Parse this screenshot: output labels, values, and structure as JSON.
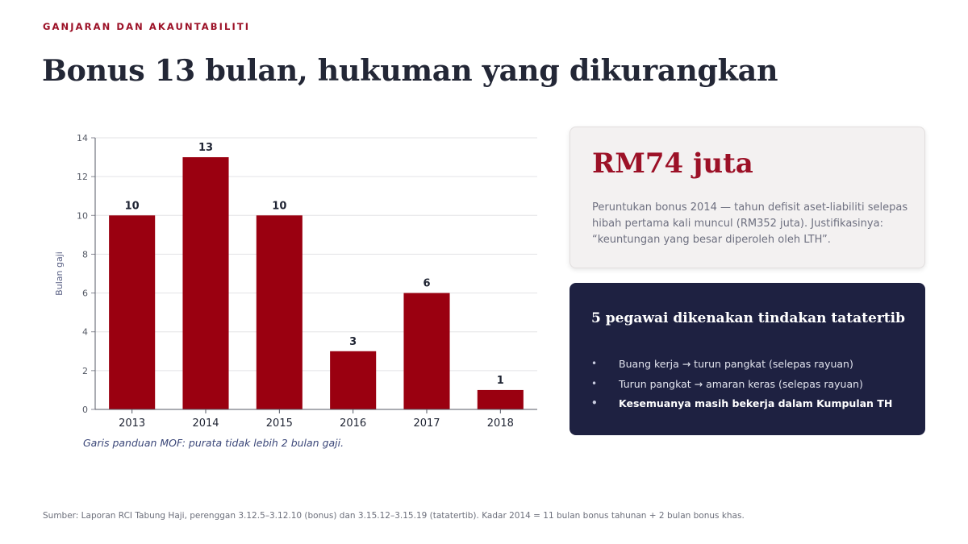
{
  "header": {
    "eyebrow": "GANJARAN DAN AKAUNTABILITI",
    "title": "Bonus 13 bulan, hukuman yang dikurangkan"
  },
  "chart_note": "Garis panduan MOF: purata tidak lebih 2 bulan gaji.",
  "stat_card": {
    "value": "RM74 juta",
    "description": "Peruntukan bonus 2014 — tahun defisit aset-liabiliti selepas hibah pertama kali muncul (RM352 juta). Justifikasinya: “keuntungan yang besar diperoleh oleh LTH”."
  },
  "discipline_card": {
    "title": "5 pegawai dikenakan tindakan tatatertib",
    "items": [
      {
        "text": "Buang kerja  →  turun pangkat (selepas rayuan)",
        "bold": false
      },
      {
        "text": "Turun pangkat  →  amaran keras (selepas rayuan)",
        "bold": false
      },
      {
        "text": "Kesemuanya masih bekerja dalam Kumpulan TH",
        "bold": true
      }
    ]
  },
  "source": "Sumber: Laporan RCI Tabung Haji, perenggan 3.12.5–3.12.10 (bonus) dan 3.15.12–3.15.19 (tatatertib). Kadar 2014 = 11 bulan bonus tahunan + 2 bulan bonus khas.",
  "colors": {
    "accent": "#9c1127",
    "bar": "#9a0010",
    "dark_card": "#1e2141",
    "gridline": "#e3e3e6"
  },
  "chart_data": {
    "type": "bar",
    "categories": [
      "2013",
      "2014",
      "2015",
      "2016",
      "2017",
      "2018"
    ],
    "values": [
      10,
      13,
      10,
      3,
      6,
      1
    ],
    "title": "",
    "xlabel": "",
    "ylabel": "Bulan gaji",
    "ylim": [
      0,
      14
    ],
    "yticks": [
      0,
      2,
      4,
      6,
      8,
      10,
      12,
      14
    ],
    "grid": true,
    "data_labels": true
  }
}
